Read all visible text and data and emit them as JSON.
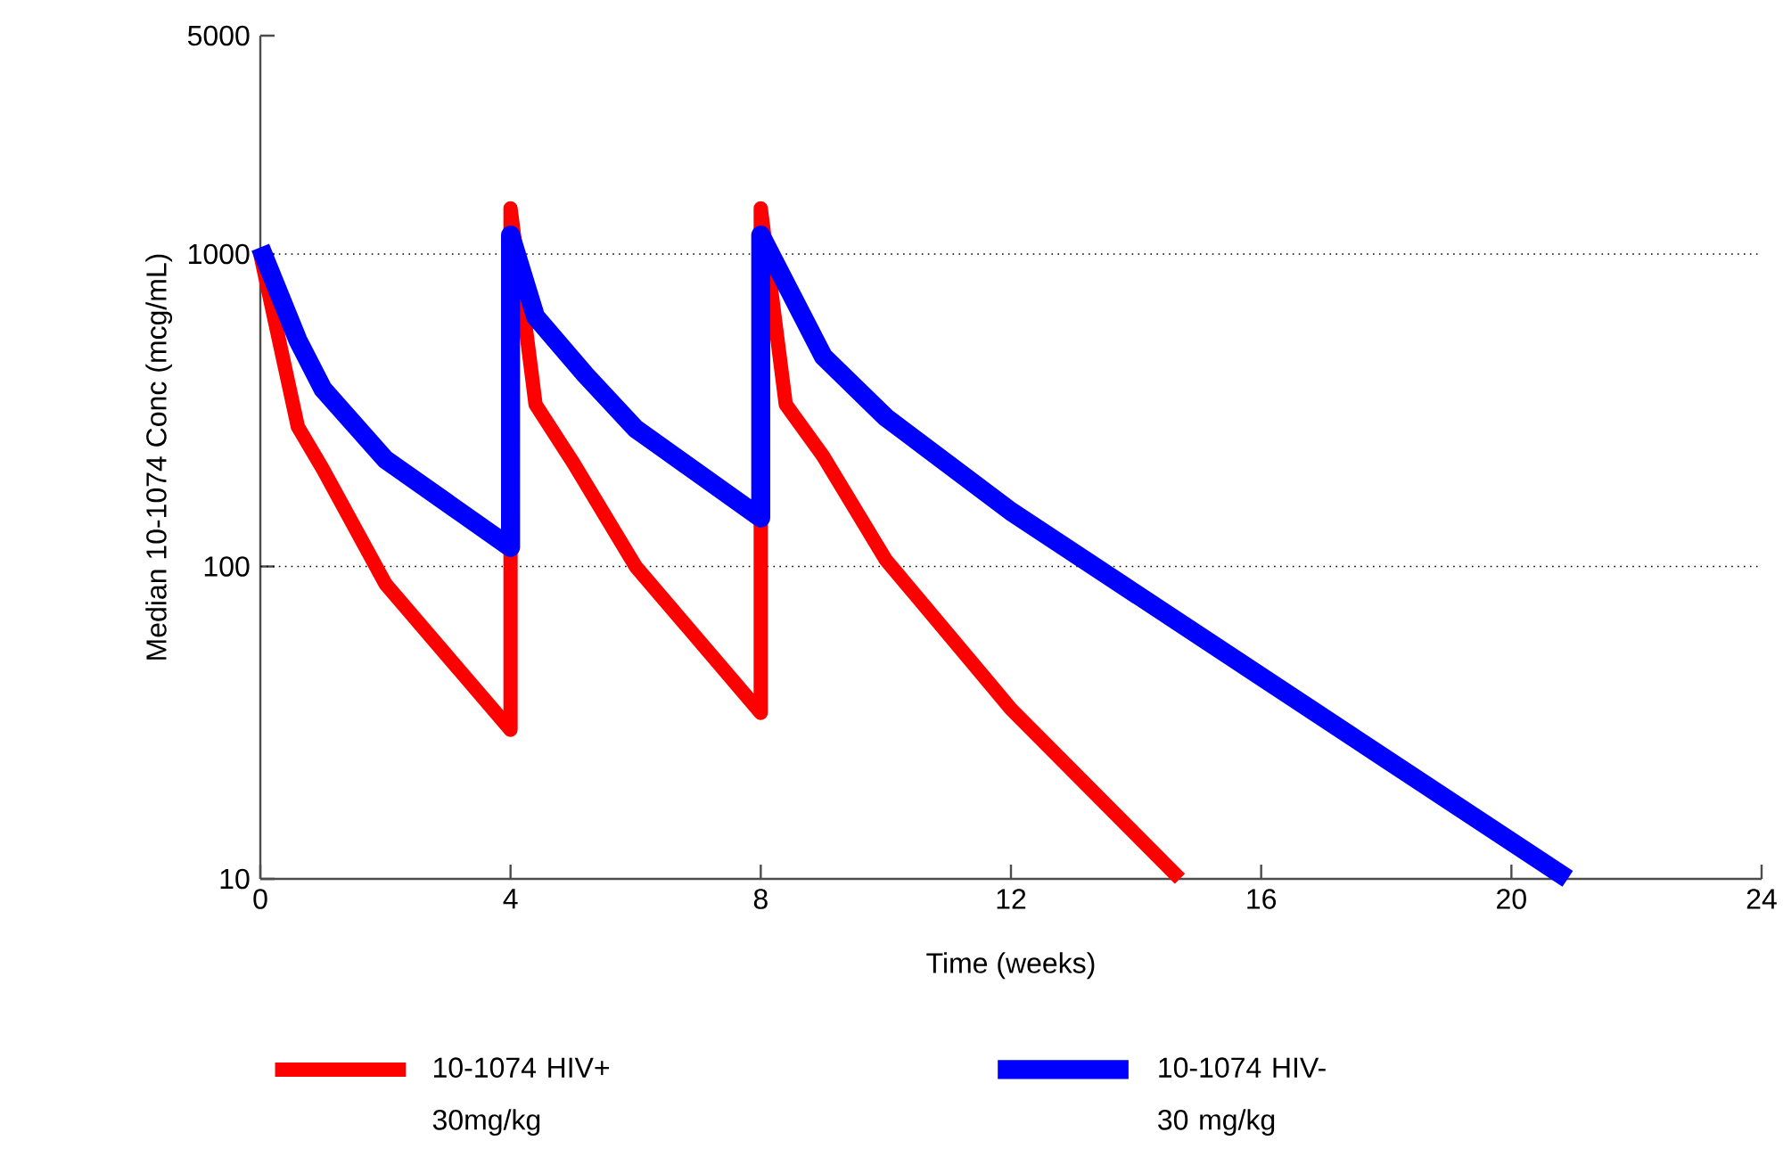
{
  "chart_data": {
    "type": "line",
    "xlabel": "Time (weeks)",
    "ylabel": "Median 10-1074 Conc (mcg/mL)",
    "xlim": [
      0,
      24
    ],
    "xticks": [
      0,
      4,
      8,
      12,
      16,
      20,
      24
    ],
    "ylim": [
      10,
      5000
    ],
    "yticks": [
      10,
      100,
      1000,
      5000
    ],
    "log": "y",
    "grid": false,
    "legend": "bottom",
    "marker": "none",
    "ref_lines": [
      {
        "axis": "y",
        "value": 100,
        "line_style": "dotted",
        "color": "#000000"
      },
      {
        "axis": "y",
        "value": 1000,
        "line_style": "dotted",
        "color": "#000000"
      }
    ],
    "series": [
      {
        "name": "10-1074 HIV+ 30mg/kg",
        "color": "#ff0000",
        "x": [
          0,
          0.6,
          1,
          2,
          4,
          4,
          4.4,
          5,
          6,
          8,
          8,
          8.4,
          9,
          10,
          12,
          14.7
        ],
        "values": [
          1000,
          280,
          205,
          88,
          30,
          1400,
          330,
          215,
          100,
          34,
          1400,
          330,
          225,
          105,
          35,
          10
        ]
      },
      {
        "name": "10-1074 HIV- 30 mg/kg",
        "color": "#0000ff",
        "x": [
          0,
          0.6,
          1,
          2,
          4,
          4,
          4.4,
          5.2,
          6,
          8,
          8,
          9,
          10,
          12,
          20.9
        ],
        "values": [
          1050,
          530,
          370,
          220,
          115,
          1150,
          630,
          410,
          276,
          143,
          1150,
          470,
          300,
          150,
          10
        ]
      }
    ]
  }
}
